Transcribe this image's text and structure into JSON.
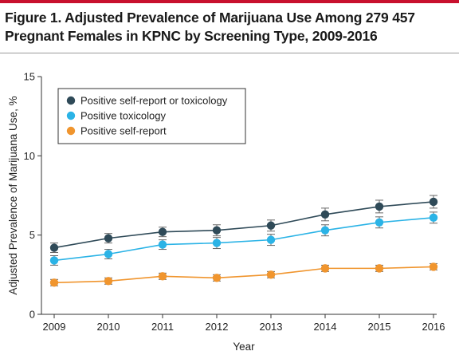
{
  "figure": {
    "title": "Figure 1. Adjusted Prevalence of Marijuana Use Among 279 457 Pregnant Females in KPNC by Screening Type, 2009-2016"
  },
  "chart_data": {
    "type": "line",
    "title": "Figure 1. Adjusted Prevalence of Marijuana Use Among 279 457 Pregnant Females in KPNC by Screening Type, 2009-2016",
    "xlabel": "Year",
    "ylabel": "Adjusted Prevalence of Marijuana Use, %",
    "categories": [
      "2009",
      "2010",
      "2011",
      "2012",
      "2013",
      "2014",
      "2015",
      "2016"
    ],
    "y_ticks": [
      "0",
      "5",
      "10",
      "15"
    ],
    "ylim": [
      0,
      15
    ],
    "grid": false,
    "legend_position": "top-left",
    "series": [
      {
        "name": "Positive self-report or toxicology",
        "color": "#2f4a58",
        "values": [
          4.2,
          4.8,
          5.2,
          5.3,
          5.6,
          6.3,
          6.8,
          7.1
        ],
        "error": [
          0.3,
          0.3,
          0.3,
          0.35,
          0.35,
          0.4,
          0.4,
          0.4
        ]
      },
      {
        "name": "Positive toxicology",
        "color": "#2bb3e6",
        "values": [
          3.4,
          3.8,
          4.4,
          4.5,
          4.7,
          5.3,
          5.8,
          6.1
        ],
        "error": [
          0.3,
          0.3,
          0.3,
          0.35,
          0.35,
          0.35,
          0.35,
          0.35
        ]
      },
      {
        "name": "Positive self-report",
        "color": "#f0952e",
        "values": [
          2.0,
          2.1,
          2.4,
          2.3,
          2.5,
          2.9,
          2.9,
          3.0
        ],
        "error": [
          0.2,
          0.2,
          0.2,
          0.2,
          0.2,
          0.2,
          0.2,
          0.2
        ]
      }
    ]
  }
}
